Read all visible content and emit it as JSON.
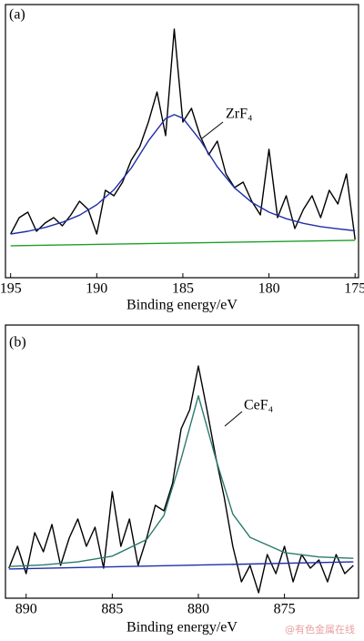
{
  "chart_data": [
    {
      "type": "line",
      "label": "(a)",
      "xlabel": "Binding energy/eV",
      "annotation": "ZrF₄",
      "xlim": [
        195.3,
        174.8
      ],
      "xticks": [
        195,
        190,
        185,
        180,
        175
      ],
      "ylim": [
        0,
        100
      ],
      "series": [
        {
          "color": "#000000",
          "x": [
            195,
            194.5,
            194,
            193.5,
            193,
            192.5,
            192,
            191.5,
            191,
            190.5,
            190,
            189.5,
            189,
            188.5,
            188,
            187.5,
            187,
            186.5,
            186,
            185.5,
            185,
            184.5,
            184,
            183.5,
            183,
            182.5,
            182,
            181.5,
            181,
            180.5,
            180,
            179.5,
            179,
            178.5,
            178,
            177.5,
            177,
            176.5,
            176,
            175.5,
            175
          ],
          "values": [
            16,
            22,
            24,
            17,
            20,
            22,
            19,
            23,
            28,
            25,
            16,
            32,
            30,
            35,
            43,
            48,
            57,
            68,
            52,
            91,
            57,
            62,
            52,
            45,
            50,
            38,
            33,
            35,
            28,
            23,
            47,
            22,
            30,
            18,
            25,
            30,
            22,
            32,
            27,
            38,
            14
          ]
        },
        {
          "color": "#1f2fa8",
          "x": [
            195,
            194,
            193,
            192,
            191,
            190,
            189,
            188,
            187,
            186,
            185.5,
            185,
            184,
            183,
            182,
            181,
            180,
            179,
            178,
            177,
            176,
            175
          ],
          "values": [
            16.0,
            17.0,
            18.4,
            20.3,
            22.9,
            26.7,
            32.2,
            40.1,
            50.1,
            58.3,
            59.7,
            58.4,
            50.4,
            40.6,
            32.9,
            27.6,
            24.0,
            21.6,
            19.9,
            18.7,
            17.9,
            17.2
          ]
        },
        {
          "color": "#1e9e2a",
          "x": [
            195,
            175
          ],
          "values": [
            11.7,
            13.7
          ]
        }
      ]
    },
    {
      "type": "line",
      "label": "(b)",
      "xlabel": "Binding energy/eV",
      "annotation": "CeF₄",
      "xlim": [
        891.2,
        870.7
      ],
      "xticks": [
        890,
        885,
        880,
        875
      ],
      "ylim": [
        0,
        100
      ],
      "series": [
        {
          "color": "#000000",
          "x": [
            891,
            890.5,
            890,
            889.5,
            889,
            888.5,
            888,
            887.5,
            887,
            886.5,
            886,
            885.5,
            885,
            884.5,
            884,
            883.5,
            883,
            882.5,
            882,
            881.5,
            881,
            880.5,
            880,
            879.5,
            879,
            878.5,
            878,
            877.5,
            877,
            876.5,
            876,
            875.5,
            875,
            874.5,
            874,
            873.5,
            873,
            872.5,
            872,
            871.5,
            871
          ],
          "values": [
            11,
            19,
            9,
            24,
            17,
            27,
            12,
            22,
            29,
            19,
            26,
            11,
            39,
            19,
            29,
            12,
            22,
            34,
            32,
            42,
            62,
            69,
            85,
            69,
            52,
            37,
            19,
            6,
            12,
            2,
            16,
            9,
            19,
            6,
            16,
            11,
            14,
            6,
            16,
            9,
            12
          ]
        },
        {
          "color": "#2a7a6e",
          "x": [
            891,
            889,
            887,
            885,
            883,
            882,
            881,
            880,
            879,
            878,
            877,
            875,
            873,
            871
          ],
          "values": [
            11.6,
            12.2,
            13.3,
            15.4,
            21.5,
            30.3,
            51,
            74.1,
            51.3,
            30.8,
            22.3,
            16.7,
            15.1,
            14.6
          ]
        },
        {
          "color": "#1f2fa8",
          "x": [
            891,
            871
          ],
          "values": [
            10.7,
            13.3
          ]
        }
      ]
    }
  ],
  "watermark": "@有色金属在线"
}
